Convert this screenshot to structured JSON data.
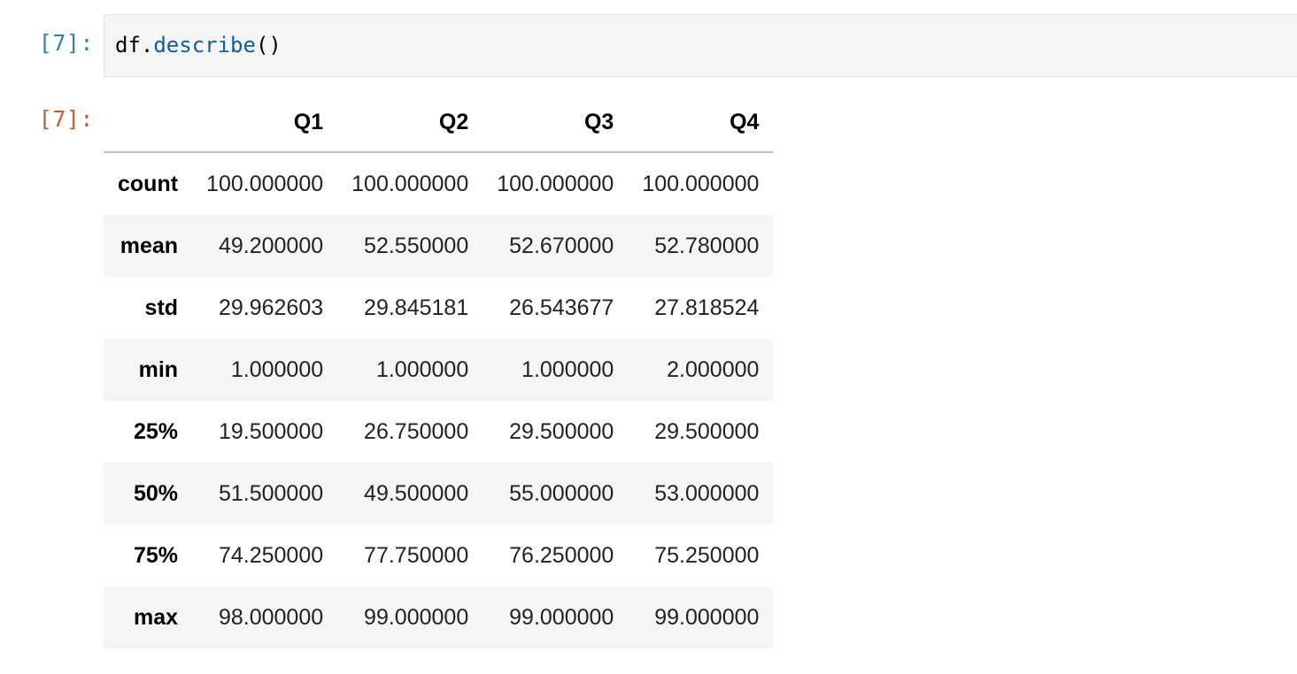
{
  "input_cell": {
    "prompt": "[7]:",
    "code_object": "df.",
    "code_method": "describe",
    "code_parens": "()"
  },
  "output_cell": {
    "prompt": "[7]:"
  },
  "table": {
    "columns": [
      "Q1",
      "Q2",
      "Q3",
      "Q4"
    ],
    "rows": [
      {
        "index": "count",
        "values": [
          "100.000000",
          "100.000000",
          "100.000000",
          "100.000000"
        ]
      },
      {
        "index": "mean",
        "values": [
          "49.200000",
          "52.550000",
          "52.670000",
          "52.780000"
        ]
      },
      {
        "index": "std",
        "values": [
          "29.962603",
          "29.845181",
          "26.543677",
          "27.818524"
        ]
      },
      {
        "index": "min",
        "values": [
          "1.000000",
          "1.000000",
          "1.000000",
          "2.000000"
        ]
      },
      {
        "index": "25%",
        "values": [
          "19.500000",
          "26.750000",
          "29.500000",
          "29.500000"
        ]
      },
      {
        "index": "50%",
        "values": [
          "51.500000",
          "49.500000",
          "55.000000",
          "53.000000"
        ]
      },
      {
        "index": "75%",
        "values": [
          "74.250000",
          "77.750000",
          "76.250000",
          "75.250000"
        ]
      },
      {
        "index": "max",
        "values": [
          "98.000000",
          "99.000000",
          "99.000000",
          "99.000000"
        ]
      }
    ]
  },
  "colors": {
    "in_prompt": "#307fc1",
    "out_prompt": "#bf5b3d",
    "method": "#0b5fa8",
    "input_bg": "#f5f5f5",
    "stripe_bg": "#f5f5f5",
    "header_rule": "#bdbdbd"
  }
}
